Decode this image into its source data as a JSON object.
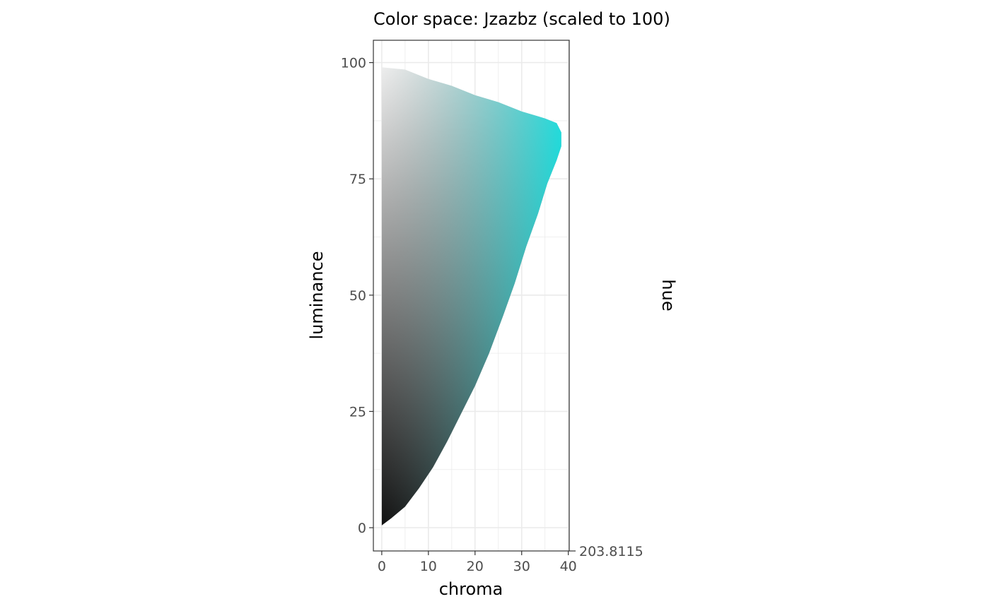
{
  "chart_data": {
    "type": "heatmap",
    "title": "Color space: Jzazbz (scaled to 100)",
    "xlabel": "chroma",
    "ylabel": "luminance",
    "right_axis_label": "hue",
    "x_ticks": [
      0,
      10,
      20,
      30,
      40
    ],
    "y_ticks": [
      0,
      25,
      50,
      75,
      100
    ],
    "xlim": [
      -1.8,
      40.2
    ],
    "ylim": [
      -5,
      104.8
    ],
    "hue_tick": "203.8115",
    "gamut_boundary": [
      [
        0,
        0.5
      ],
      [
        2,
        2
      ],
      [
        5,
        4.5
      ],
      [
        8,
        8.5
      ],
      [
        11,
        13
      ],
      [
        14,
        18.5
      ],
      [
        17,
        24.5
      ],
      [
        20,
        30.5
      ],
      [
        23,
        37.5
      ],
      [
        26,
        45.5
      ],
      [
        28.5,
        52.5
      ],
      [
        31,
        60.5
      ],
      [
        33.5,
        67.5
      ],
      [
        35.5,
        74
      ],
      [
        37.5,
        79
      ],
      [
        38.5,
        82
      ],
      [
        38.5,
        85
      ],
      [
        37.5,
        87
      ],
      [
        35,
        88
      ],
      [
        30,
        89.5
      ],
      [
        25,
        91.5
      ],
      [
        20,
        93
      ],
      [
        15,
        95
      ],
      [
        10,
        96.5
      ],
      [
        5,
        98.5
      ],
      [
        0,
        99
      ]
    ],
    "colors": {
      "black": "#000000",
      "white": "#ffffff",
      "gray": "#808080",
      "max_chroma": "#00ffff",
      "grid": "#ebebeb",
      "panel_border": "#333333"
    }
  }
}
